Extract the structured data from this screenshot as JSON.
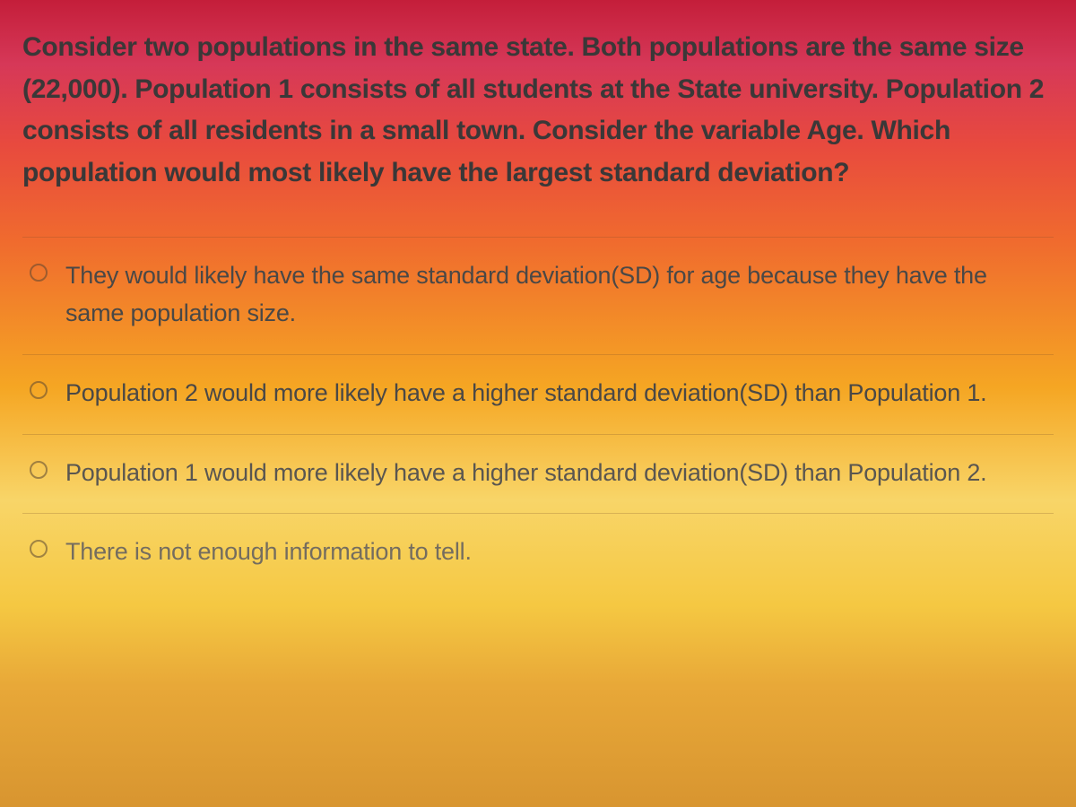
{
  "question": {
    "text": "Consider two populations in the same state. Both populations are the same size (22,000). Population 1 consists of all students at the State university. Population 2 consists of all residents in a small town. Consider the variable Age. Which population would most likely have the largest standard deviation?"
  },
  "options": [
    {
      "label": "They would likely have the same standard deviation(SD) for age because they have the same population size."
    },
    {
      "label": "Population 2 would more likely have a higher standard deviation(SD) than Population 1."
    },
    {
      "label": "Population 1 would more likely have a higher standard deviation(SD) than Population 2."
    },
    {
      "label": "There is not enough information to tell."
    }
  ],
  "styling": {
    "gradient_stops": [
      "#c41e3a",
      "#d63858",
      "#e84a3e",
      "#f06b2e",
      "#f5a623",
      "#f8d568",
      "#f5c842",
      "#e8a838",
      "#d89530"
    ],
    "question_fontsize": 30,
    "option_fontsize": 27,
    "text_color_primary": "#3a3838",
    "text_color_option": "#4a4846",
    "radio_border_color": "rgba(90,70,50,0.55)",
    "divider_color": "rgba(120,80,40,0.25)"
  }
}
